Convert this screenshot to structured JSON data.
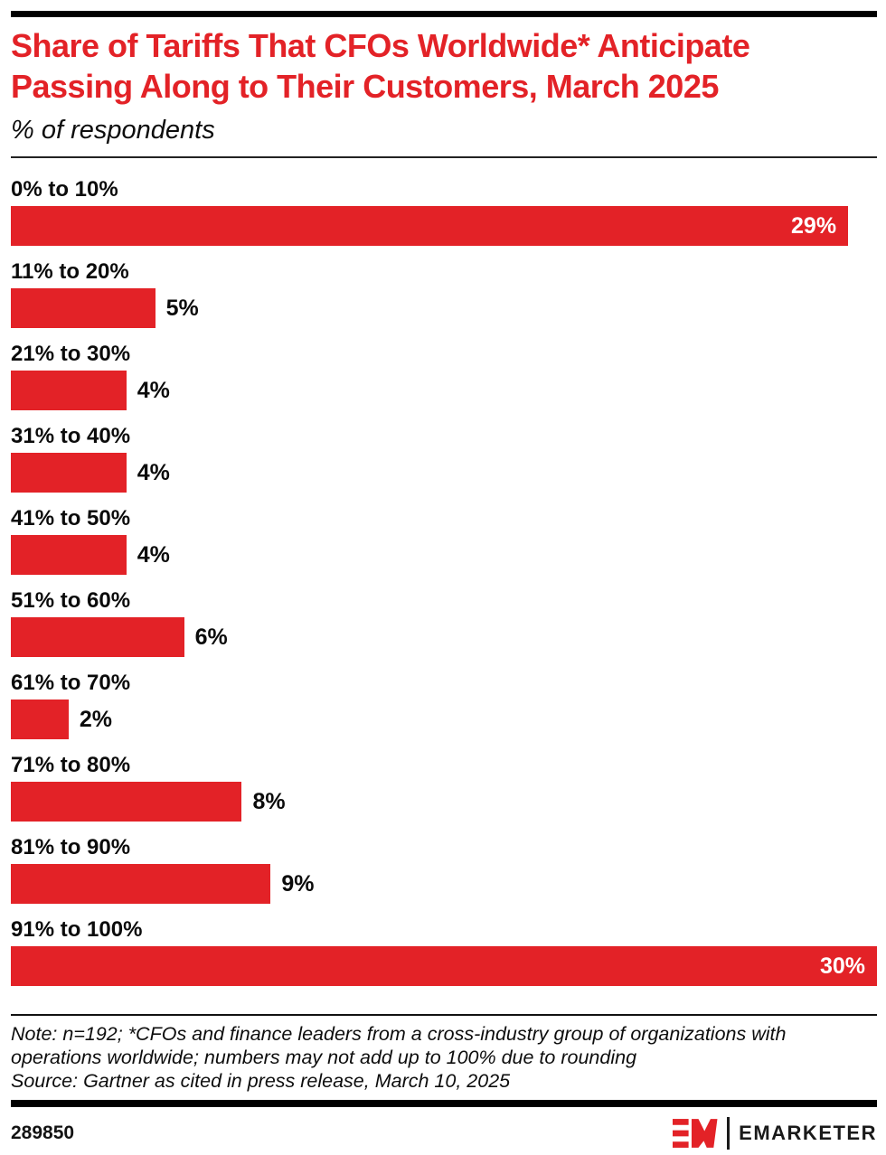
{
  "colors": {
    "accent_red": "#E32227",
    "bar_red": "#E32227",
    "rule_black": "#000000"
  },
  "header": {
    "title_line1": "Share of Tariffs That CFOs Worldwide* Anticipate",
    "title_line2": "Passing Along to Their Customers, March 2025",
    "subtitle": "% of respondents"
  },
  "chart_data": {
    "type": "bar",
    "orientation": "horizontal",
    "title": "Share of Tariffs That CFOs Worldwide* Anticipate Passing Along to Their Customers, March 2025",
    "subtitle": "% of respondents",
    "categories": [
      "0% to 10%",
      "11% to 20%",
      "21% to 30%",
      "31% to 40%",
      "41% to 50%",
      "51% to 60%",
      "61% to 70%",
      "71% to 80%",
      "81% to 90%",
      "91% to 100%"
    ],
    "values": [
      29,
      5,
      4,
      4,
      4,
      6,
      2,
      8,
      9,
      30
    ],
    "value_suffix": "%",
    "xlim": [
      0,
      30
    ],
    "grid": false,
    "bar_color": "#E32227",
    "value_labels": "end-of-bar, inside bar in white when bar is near full width"
  },
  "notes": {
    "lines": [
      "Note: n=192; *CFOs and finance leaders from a cross-industry group of organizations with",
      "operations worldwide; numbers may not add up to 100% due to rounding",
      "Source: Gartner as cited in press release, March 10, 2025"
    ]
  },
  "footer": {
    "chart_id": "289850",
    "brand_word": "EMARKETER"
  }
}
